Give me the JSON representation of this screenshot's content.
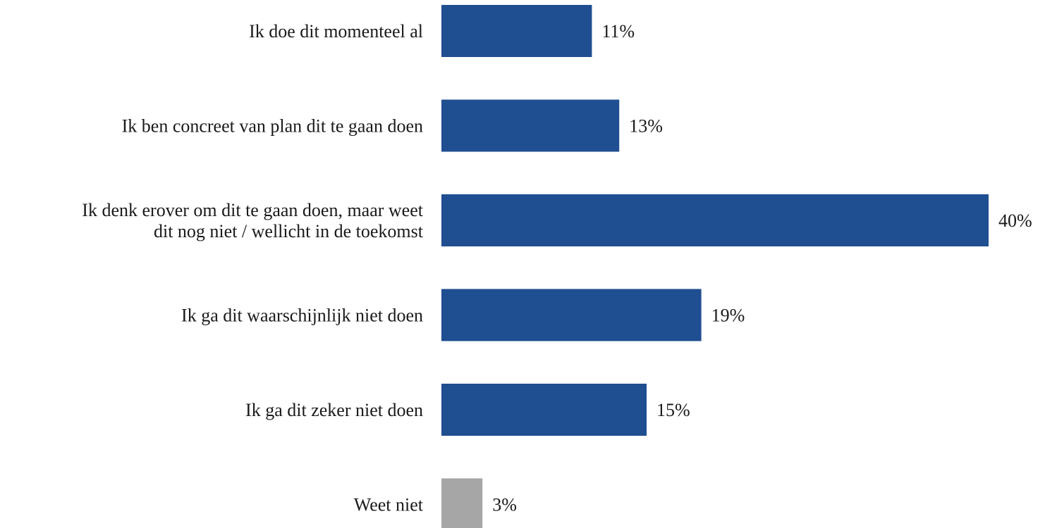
{
  "chart_data": {
    "type": "bar",
    "orientation": "horizontal",
    "title": "",
    "xlabel": "",
    "ylabel": "",
    "categories": [
      "Ik doe dit momenteel al",
      "Ik ben concreet van plan dit te gaan doen",
      "Ik denk erover om dit te gaan doen, maar weet dit nog niet / wellicht in de toekomst",
      "Ik ga dit waarschijnlijk niet doen",
      "Ik ga dit zeker niet doen",
      "Weet niet"
    ],
    "category_lines": [
      [
        "Ik doe dit momenteel al"
      ],
      [
        "Ik ben concreet van plan dit te gaan doen"
      ],
      [
        "Ik denk erover om dit te gaan doen, maar weet",
        "dit nog niet / wellicht in de toekomst"
      ],
      [
        "Ik ga dit waarschijnlijk niet doen"
      ],
      [
        "Ik ga dit zeker niet doen"
      ],
      [
        "Weet niet"
      ]
    ],
    "values": [
      11,
      13,
      40,
      19,
      15,
      3
    ],
    "value_labels": [
      "11%",
      "13%",
      "40%",
      "19%",
      "15%",
      "3%"
    ],
    "unit": "%",
    "xlim": [
      0,
      40
    ],
    "grid": false,
    "legend": "none",
    "colors": {
      "bar": "#1f4e91",
      "bar_unknown": "#a6a6a6"
    },
    "bar_colors": [
      "#1f4e91",
      "#1f4e91",
      "#1f4e91",
      "#1f4e91",
      "#1f4e91",
      "#a6a6a6"
    ]
  }
}
